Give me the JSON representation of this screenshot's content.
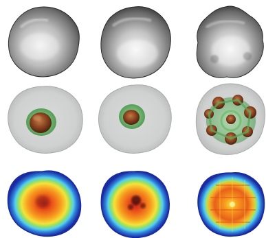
{
  "figure": {
    "columns": 3,
    "rows": [
      {
        "name": "surface-rendering",
        "style": "grey-isosurface",
        "colors": {
          "light": "#e4e4e4",
          "mid": "#9a9a9a",
          "dark": "#3a3a3a"
        }
      },
      {
        "name": "translucent-shell-with-core",
        "style": "transparent-grey-shell-green-layer-brown-core",
        "colors": {
          "shell": "#c9cccb",
          "green": "#5aa85a",
          "core": "#7a3b1a"
        }
      },
      {
        "name": "density-heatmap-slice",
        "style": "jet-colormap",
        "colors": [
          "#1a2aa0",
          "#2f7fd8",
          "#55d0f0",
          "#8ee06a",
          "#f5e23a",
          "#f79a1e",
          "#e8481a",
          "#b31a10"
        ]
      }
    ]
  }
}
